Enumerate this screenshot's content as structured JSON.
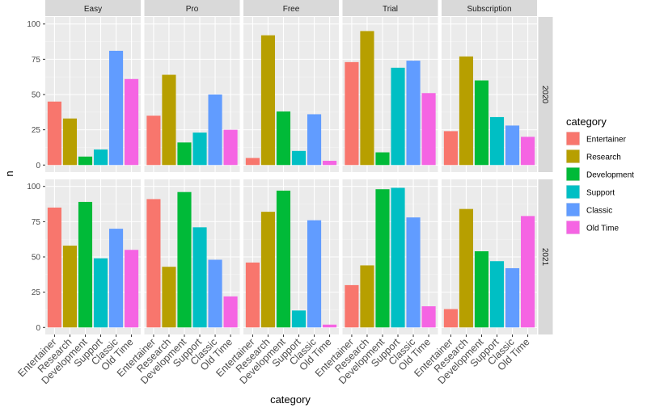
{
  "chart_data": {
    "type": "bar",
    "xlabel": "category",
    "ylabel": "n",
    "ylim": [
      0,
      100
    ],
    "yticks": [
      0,
      25,
      50,
      75,
      100
    ],
    "grid": true,
    "legend_position": "right",
    "legend_title": "category",
    "categories": [
      "Entertainer",
      "Research",
      "Development",
      "Support",
      "Classic",
      "Old Time"
    ],
    "colors": [
      "#F8766D",
      "#B79F00",
      "#00BA38",
      "#00BFC4",
      "#619CFF",
      "#F564E3"
    ],
    "facet_columns": [
      "Easy",
      "Pro",
      "Free",
      "Trial",
      "Subscription"
    ],
    "facet_rows": [
      "2020",
      "2021"
    ],
    "values": {
      "2020": {
        "Easy": [
          45,
          33,
          6,
          11,
          81,
          61
        ],
        "Pro": [
          35,
          64,
          16,
          23,
          50,
          25
        ],
        "Free": [
          5,
          92,
          38,
          10,
          36,
          3
        ],
        "Trial": [
          73,
          95,
          9,
          69,
          74,
          51
        ],
        "Subscription": [
          24,
          77,
          60,
          34,
          28,
          20
        ]
      },
      "2021": {
        "Easy": [
          85,
          58,
          89,
          49,
          70,
          55
        ],
        "Pro": [
          91,
          43,
          96,
          71,
          48,
          22
        ],
        "Free": [
          46,
          82,
          97,
          12,
          76,
          2
        ],
        "Trial": [
          30,
          44,
          98,
          99,
          78,
          15
        ],
        "Subscription": [
          13,
          84,
          54,
          47,
          42,
          79
        ]
      }
    }
  }
}
